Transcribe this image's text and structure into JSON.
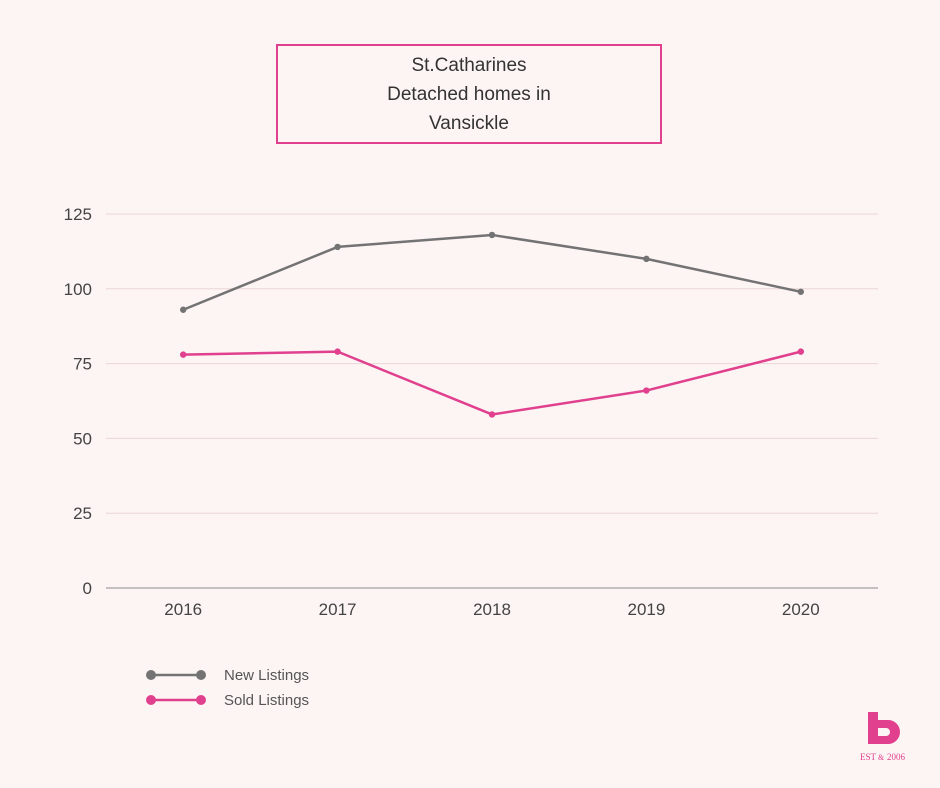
{
  "title_lines": [
    "St.Catharines",
    "Detached homes in",
    "Vansickle"
  ],
  "colors": {
    "background": "#fdf5f4",
    "accent": "#e0408e",
    "grid": "#ecd6d6"
  },
  "logo": {
    "text": "EST",
    "year": "2006"
  },
  "chart_data": {
    "type": "line",
    "title": "St.Catharines Detached homes in Vansickle",
    "categories": [
      "2016",
      "2017",
      "2018",
      "2019",
      "2020"
    ],
    "yticks": [
      "0",
      "25",
      "50",
      "75",
      "100",
      "125"
    ],
    "ylim": [
      0,
      125
    ],
    "grid": true,
    "legend_position": "bottom-left",
    "series": [
      {
        "name": "New Listings",
        "color": "#737373",
        "values": [
          93,
          114,
          118,
          110,
          99
        ]
      },
      {
        "name": "Sold Listings",
        "color": "#e0408e",
        "values": [
          78,
          79,
          58,
          66,
          79
        ]
      }
    ]
  }
}
